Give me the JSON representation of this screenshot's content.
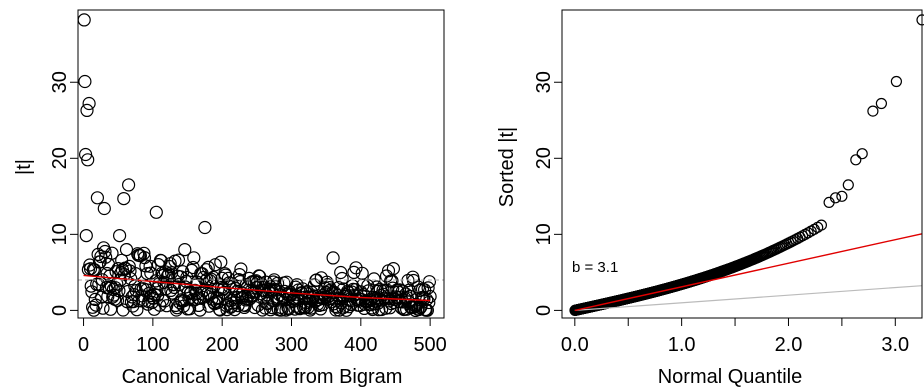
{
  "chart_data": [
    {
      "type": "scatter",
      "title": "",
      "xlabel": "Canonical Variable from Bigram",
      "ylabel": "|t|",
      "xlim": [
        -8,
        520
      ],
      "ylim": [
        -1,
        39.5
      ],
      "xticks": [
        0,
        100,
        200,
        300,
        400,
        500
      ],
      "yticks": [
        0,
        10,
        20,
        30
      ],
      "grid": false,
      "points_description": "|t| for each of 500 canonical variables; large values at small indices decaying toward ~1-2",
      "highlighted_points": [
        {
          "x": 1,
          "y": 38.2
        },
        {
          "x": 2,
          "y": 30.1
        },
        {
          "x": 5,
          "y": 26.3
        },
        {
          "x": 8,
          "y": 27.2
        },
        {
          "x": 3,
          "y": 20.5
        },
        {
          "x": 6,
          "y": 19.8
        },
        {
          "x": 20,
          "y": 14.8
        },
        {
          "x": 65,
          "y": 16.5
        },
        {
          "x": 58,
          "y": 14.7
        },
        {
          "x": 30,
          "y": 13.4
        },
        {
          "x": 105,
          "y": 12.9
        },
        {
          "x": 175,
          "y": 10.9
        },
        {
          "x": 360,
          "y": 6.9
        },
        {
          "x": 440,
          "y": 5.2
        }
      ],
      "trend_line": {
        "color": "#e00000",
        "x": [
          0,
          100,
          200,
          300,
          400,
          500
        ],
        "y": [
          4.6,
          3.8,
          3.0,
          2.3,
          1.7,
          1.3
        ]
      },
      "reference_line": {
        "y": 4.0,
        "style": "dashed",
        "color": "#aaaaaa"
      }
    },
    {
      "type": "scatter",
      "title": "",
      "xlabel": "Normal Quantile",
      "ylabel": "Sorted |t|",
      "xlim": [
        -0.12,
        3.25
      ],
      "ylim": [
        -1,
        39.5
      ],
      "xticks": [
        0.0,
        1.0,
        2.0,
        3.0
      ],
      "xtick_labels": [
        "0.0",
        "1.0",
        "2.0",
        "3.0"
      ],
      "minor_xticks": [
        0.5,
        1.5,
        2.5
      ],
      "yticks": [
        0,
        10,
        20,
        30
      ],
      "grid": false,
      "annotation": "b = 3.1",
      "fit_line": {
        "color": "#e00000",
        "slope": 3.1,
        "intercept": 0
      },
      "reference_line": {
        "color": "#bbbbbb",
        "slope": 1,
        "intercept": 0
      },
      "tail_points": [
        {
          "x": 2.38,
          "y": 14.2
        },
        {
          "x": 2.44,
          "y": 14.8
        },
        {
          "x": 2.5,
          "y": 15.0
        },
        {
          "x": 2.56,
          "y": 16.5
        },
        {
          "x": 2.63,
          "y": 19.8
        },
        {
          "x": 2.69,
          "y": 20.6
        },
        {
          "x": 2.79,
          "y": 26.2
        },
        {
          "x": 2.87,
          "y": 27.2
        },
        {
          "x": 3.01,
          "y": 30.1
        },
        {
          "x": 3.25,
          "y": 38.2
        }
      ]
    }
  ]
}
